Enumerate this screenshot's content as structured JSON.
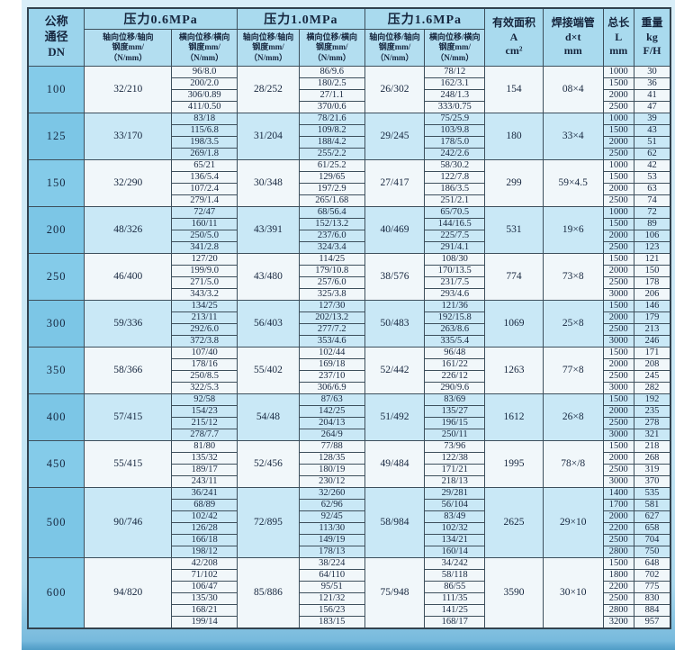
{
  "header": {
    "dn": "公称\n通径\nDN",
    "p06": "压力0.6MPa",
    "p10": "压力1.0MPa",
    "p16": "压力1.6MPa",
    "axial_sub": "轴向位移/轴向\n钢度mm/\n（N/mm）",
    "lateral_sub": "横向位移/横向\n钢度mm/\n（N/mm）",
    "area": "有效面积\nA\ncm²",
    "pipe": "焊接端管\nd×t\nmm",
    "length": "总长\nL\nmm",
    "weight": "重量\nkg\nF/H"
  },
  "rows": [
    {
      "dn": "100",
      "p06": {
        "axial": "32/210",
        "lateral": [
          "96/8.0",
          "200/2.0",
          "306/0.89",
          "411/0.50"
        ]
      },
      "p10": {
        "axial": "28/252",
        "lateral": [
          "86/9.6",
          "180/2.5",
          "27/1.1",
          "370/0.6"
        ]
      },
      "p16": {
        "axial": "26/302",
        "lateral": [
          "78/12",
          "162/3.1",
          "248/1.3",
          "333/0.75"
        ]
      },
      "area": "154",
      "pipe": "08×4",
      "lengths": [
        "1000",
        "1500",
        "2000",
        "2500"
      ],
      "weights": [
        "30",
        "36",
        "41",
        "47"
      ]
    },
    {
      "dn": "125",
      "p06": {
        "axial": "33/170",
        "lateral": [
          "83/18",
          "115/6.8",
          "198/3.5",
          "269/1.8"
        ]
      },
      "p10": {
        "axial": "31/204",
        "lateral": [
          "78/21.6",
          "109/8.2",
          "188/4.2",
          "255/2.2"
        ]
      },
      "p16": {
        "axial": "29/245",
        "lateral": [
          "75/25.9",
          "103/9.8",
          "178/5.0",
          "242/2.6"
        ]
      },
      "area": "180",
      "pipe": "33×4",
      "lengths": [
        "1000",
        "1500",
        "2000",
        "2500"
      ],
      "weights": [
        "39",
        "43",
        "51",
        "62"
      ]
    },
    {
      "dn": "150",
      "p06": {
        "axial": "32/290",
        "lateral": [
          "65/21",
          "136/5.4",
          "107/2.4",
          "279/1.4"
        ]
      },
      "p10": {
        "axial": "30/348",
        "lateral": [
          "61/25.2",
          "129/65",
          "197/2.9",
          "265/1.68"
        ]
      },
      "p16": {
        "axial": "27/417",
        "lateral": [
          "58/30.2",
          "122/7.8",
          "186/3.5",
          "251/2.1"
        ]
      },
      "area": "299",
      "pipe": "59×4.5",
      "lengths": [
        "1000",
        "1500",
        "2000",
        "2500"
      ],
      "weights": [
        "42",
        "53",
        "63",
        "74"
      ]
    },
    {
      "dn": "200",
      "p06": {
        "axial": "48/326",
        "lateral": [
          "72/47",
          "160/11",
          "250/5.0",
          "341/2.8"
        ]
      },
      "p10": {
        "axial": "43/391",
        "lateral": [
          "68/56.4",
          "152/13.2",
          "237/6.0",
          "324/3.4"
        ]
      },
      "p16": {
        "axial": "40/469",
        "lateral": [
          "65/70.5",
          "144/16.5",
          "225/7.5",
          "291/4.1"
        ]
      },
      "area": "531",
      "pipe": "19×6",
      "lengths": [
        "1000",
        "1500",
        "2000",
        "2500"
      ],
      "weights": [
        "72",
        "89",
        "106",
        "123"
      ]
    },
    {
      "dn": "250",
      "p06": {
        "axial": "46/400",
        "lateral": [
          "127/20",
          "199/9.0",
          "271/5.0",
          "343/3.2"
        ]
      },
      "p10": {
        "axial": "43/480",
        "lateral": [
          "114/25",
          "179/10.8",
          "257/6.0",
          "325/3.8"
        ]
      },
      "p16": {
        "axial": "38/576",
        "lateral": [
          "108/30",
          "170/13.5",
          "231/7.5",
          "293/4.6"
        ]
      },
      "area": "774",
      "pipe": "73×8",
      "lengths": [
        "1500",
        "2000",
        "2500",
        "3000"
      ],
      "weights": [
        "121",
        "150",
        "178",
        "206"
      ]
    },
    {
      "dn": "300",
      "p06": {
        "axial": "59/336",
        "lateral": [
          "134/25",
          "213/11",
          "292/6.0",
          "372/3.8"
        ]
      },
      "p10": {
        "axial": "56/403",
        "lateral": [
          "127/30",
          "202/13.2",
          "277/7.2",
          "353/4.6"
        ]
      },
      "p16": {
        "axial": "50/483",
        "lateral": [
          "121/36",
          "192/15.8",
          "263/8.6",
          "335/5.4"
        ]
      },
      "area": "1069",
      "pipe": "25×8",
      "lengths": [
        "1500",
        "2000",
        "2500",
        "3000"
      ],
      "weights": [
        "146",
        "179",
        "213",
        "246"
      ]
    },
    {
      "dn": "350",
      "p06": {
        "axial": "58/366",
        "lateral": [
          "107/40",
          "178/16",
          "250/8.5",
          "322/5.3"
        ]
      },
      "p10": {
        "axial": "55/402",
        "lateral": [
          "102/44",
          "169/18",
          "237/10",
          "306/6.9"
        ]
      },
      "p16": {
        "axial": "52/442",
        "lateral": [
          "96/48",
          "161/22",
          "226/12",
          "290/9.6"
        ]
      },
      "area": "1263",
      "pipe": "77×8",
      "lengths": [
        "1500",
        "2000",
        "2500",
        "3000"
      ],
      "weights": [
        "171",
        "208",
        "245",
        "282"
      ]
    },
    {
      "dn": "400",
      "p06": {
        "axial": "57/415",
        "lateral": [
          "92/58",
          "154/23",
          "215/12",
          "278/7.7"
        ]
      },
      "p10": {
        "axial": "54/48",
        "lateral": [
          "87/63",
          "142/25",
          "204/13",
          "264/9"
        ]
      },
      "p16": {
        "axial": "51/492",
        "lateral": [
          "83/69",
          "135/27",
          "196/15",
          "250/11"
        ]
      },
      "area": "1612",
      "pipe": "26×8",
      "lengths": [
        "1500",
        "2000",
        "2500",
        "3000"
      ],
      "weights": [
        "192",
        "235",
        "278",
        "321"
      ]
    },
    {
      "dn": "450",
      "p06": {
        "axial": "55/415",
        "lateral": [
          "81/80",
          "135/32",
          "189/17",
          "243/11"
        ]
      },
      "p10": {
        "axial": "52/456",
        "lateral": [
          "77/88",
          "128/35",
          "180/19",
          "230/12"
        ]
      },
      "p16": {
        "axial": "49/484",
        "lateral": [
          "73/96",
          "122/38",
          "171/21",
          "218/13"
        ]
      },
      "area": "1995",
      "pipe": "78×/8",
      "lengths": [
        "1500",
        "2000",
        "2500",
        "3000"
      ],
      "weights": [
        "218",
        "268",
        "319",
        "370"
      ]
    },
    {
      "dn": "500",
      "p06": {
        "axial": "90/746",
        "lateral": [
          "36/241",
          "68/89",
          "102/42",
          "126/28",
          "166/18",
          "198/12"
        ]
      },
      "p10": {
        "axial": "72/895",
        "lateral": [
          "32/260",
          "62/96",
          "92/45",
          "113/30",
          "149/19",
          "178/13"
        ]
      },
      "p16": {
        "axial": "58/984",
        "lateral": [
          "29/281",
          "56/104",
          "83/49",
          "102/32",
          "134/21",
          "160/14"
        ]
      },
      "area": "2625",
      "pipe": "29×10",
      "lengths": [
        "1400",
        "1700",
        "2000",
        "2200",
        "2500",
        "2800"
      ],
      "weights": [
        "535",
        "581",
        "627",
        "658",
        "704",
        "750"
      ]
    },
    {
      "dn": "600",
      "p06": {
        "axial": "94/820",
        "lateral": [
          "42/208",
          "71/102",
          "106/47",
          "135/30",
          "168/21",
          "199/14"
        ]
      },
      "p10": {
        "axial": "85/886",
        "lateral": [
          "38/224",
          "64/110",
          "95/51",
          "121/32",
          "156/23",
          "183/15"
        ]
      },
      "p16": {
        "axial": "75/948",
        "lateral": [
          "34/242",
          "58/118",
          "86/55",
          "111/35",
          "141/25",
          "168/17"
        ]
      },
      "area": "3590",
      "pipe": "30×10",
      "pipe_low": true,
      "lengths": [
        "1500",
        "1800",
        "2200",
        "2500",
        "2800",
        "3200"
      ],
      "weights": [
        "648",
        "702",
        "775",
        "830",
        "884",
        "957"
      ]
    }
  ]
}
